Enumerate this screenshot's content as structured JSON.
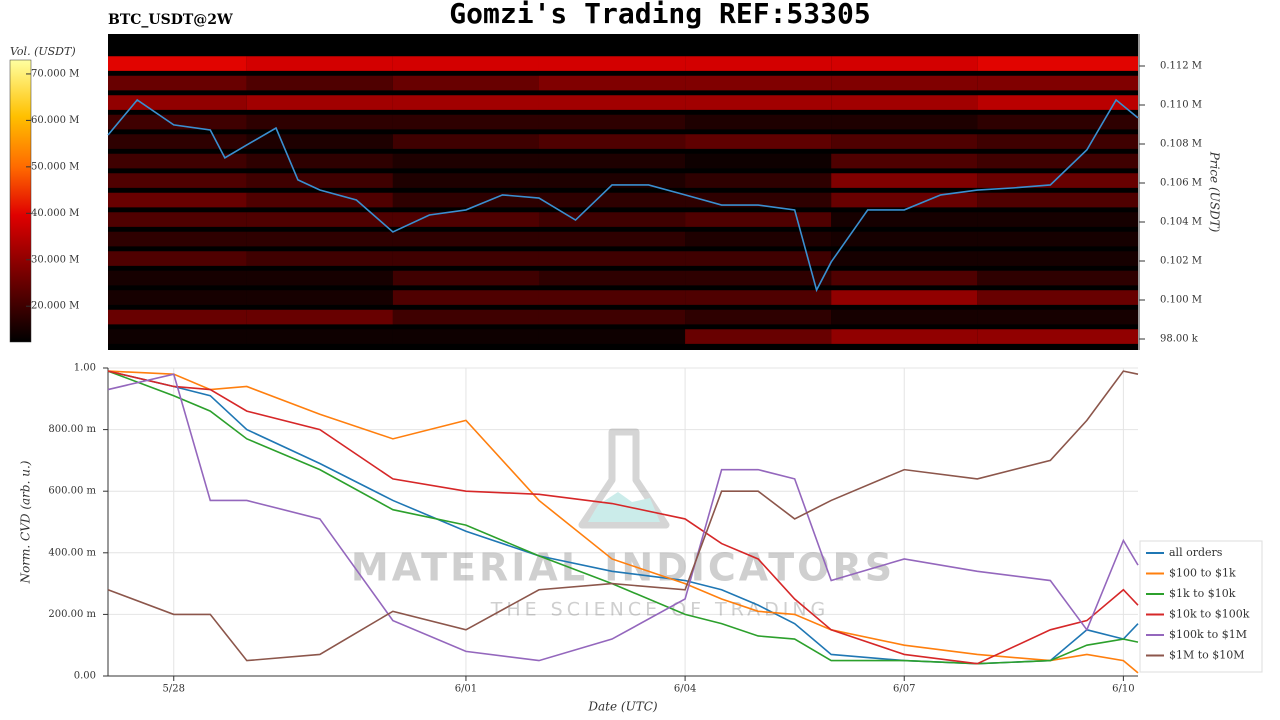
{
  "chart_data": [
    {
      "type": "heatmap",
      "title": "Gomzi's Trading REF:53305",
      "subtitle": "BTC_USDT@2W",
      "ylabel": "Price (USDT)",
      "colorbar_label": "Vol. (USDT)",
      "xlim": [
        -0.9,
        13.2
      ],
      "ylim": [
        97436,
        113641
      ],
      "yticks": [
        {
          "value": 98000,
          "label": "98.00 k"
        },
        {
          "value": 100000,
          "label": "0.100 M"
        },
        {
          "value": 102000,
          "label": "0.102 M"
        },
        {
          "value": 104000,
          "label": "0.104 M"
        },
        {
          "value": 106000,
          "label": "0.106 M"
        },
        {
          "value": 108000,
          "label": "0.108 M"
        },
        {
          "value": 110000,
          "label": "0.110 M"
        },
        {
          "value": 112000,
          "label": "0.112 M"
        }
      ],
      "clim": [
        12300000,
        73000000
      ],
      "cticks": [
        {
          "value": 20000000,
          "label": "20.000 M"
        },
        {
          "value": 30000000,
          "label": "30.000 M"
        },
        {
          "value": 40000000,
          "label": "40.000 M"
        },
        {
          "value": 50000000,
          "label": "50.000 M"
        },
        {
          "value": 60000000,
          "label": "60.000 M"
        },
        {
          "value": 70000000,
          "label": "70.000 M"
        }
      ],
      "x_edges": [
        -0.9,
        1,
        3,
        5,
        7,
        9,
        11,
        13.2
      ],
      "y_edges": [
        97500,
        98500,
        99500,
        100500,
        101500,
        102500,
        103500,
        104500,
        105500,
        106500,
        107500,
        108500,
        109500,
        110500,
        111500,
        112500
      ],
      "z": [
        [
          14000000,
          14000000,
          14000000,
          14000000,
          25000000,
          30000000,
          30000000
        ],
        [
          25000000,
          25000000,
          20000000,
          20000000,
          18000000,
          15000000,
          15000000
        ],
        [
          15000000,
          15000000,
          22000000,
          22000000,
          22000000,
          30000000,
          25000000
        ],
        [
          15000000,
          15000000,
          20000000,
          18000000,
          18000000,
          22000000,
          18000000
        ],
        [
          22000000,
          20000000,
          20000000,
          20000000,
          20000000,
          15000000,
          15000000
        ],
        [
          18000000,
          18000000,
          18000000,
          18000000,
          16000000,
          15000000,
          15000000
        ],
        [
          22000000,
          22000000,
          22000000,
          20000000,
          22000000,
          15000000,
          15000000
        ],
        [
          25000000,
          22000000,
          18000000,
          18000000,
          18000000,
          25000000,
          22000000
        ],
        [
          22000000,
          20000000,
          16000000,
          16000000,
          18000000,
          28000000,
          25000000
        ],
        [
          20000000,
          18000000,
          16000000,
          16000000,
          14000000,
          22000000,
          20000000
        ],
        [
          18000000,
          16000000,
          20000000,
          22000000,
          24000000,
          22000000,
          20000000
        ],
        [
          20000000,
          18000000,
          18000000,
          18000000,
          16000000,
          16000000,
          18000000
        ],
        [
          30000000,
          32000000,
          32000000,
          32000000,
          32000000,
          32000000,
          35000000
        ],
        [
          25000000,
          22000000,
          25000000,
          28000000,
          28000000,
          28000000,
          28000000
        ],
        [
          40000000,
          38000000,
          38000000,
          38000000,
          38000000,
          38000000,
          40000000
        ]
      ],
      "price": {
        "color": "#3a8fd0",
        "x": [
          -0.9,
          -0.5,
          0,
          0.5,
          0.7,
          1.0,
          1.4,
          1.7,
          2.0,
          2.5,
          3.0,
          3.5,
          4.0,
          4.5,
          5.0,
          5.5,
          6.0,
          6.5,
          7.0,
          7.5,
          8.0,
          8.5,
          8.8,
          9.0,
          9.5,
          10.0,
          10.5,
          11.0,
          11.5,
          12.0,
          12.5,
          12.9,
          13.2
        ],
        "values": [
          108460,
          110260,
          108980,
          108720,
          107290,
          107950,
          108820,
          106160,
          105640,
          105130,
          103490,
          104360,
          104620,
          105390,
          105230,
          104100,
          105900,
          105900,
          105390,
          104870,
          104870,
          104620,
          100510,
          101950,
          104620,
          104620,
          105390,
          105640,
          105750,
          105900,
          107700,
          110260,
          109340
        ]
      }
    },
    {
      "type": "line",
      "xlabel": "Date (UTC)",
      "ylabel": "Norm. CVD (arb. u.)",
      "watermark": "MATERIAL INDICATORS",
      "watermark_subtitle": "THE SCIENCE OF TRADING",
      "grid": true,
      "legend": "lower-right",
      "xlim": [
        -0.9,
        13.2
      ],
      "xticks": [
        {
          "value": 0,
          "label": "5/28"
        },
        {
          "value": 4,
          "label": "6/01"
        },
        {
          "value": 7,
          "label": "6/04"
        },
        {
          "value": 10,
          "label": "6/07"
        },
        {
          "value": 13,
          "label": "6/10"
        }
      ],
      "ylim": [
        0,
        1
      ],
      "yticks": [
        {
          "value": 0,
          "label": "0.00"
        },
        {
          "value": 0.2,
          "label": "200.00 m"
        },
        {
          "value": 0.4,
          "label": "400.00 m"
        },
        {
          "value": 0.6,
          "label": "600.00 m"
        },
        {
          "value": 0.8,
          "label": "800.00 m"
        },
        {
          "value": 1,
          "label": "1.00"
        }
      ],
      "x": [
        -0.9,
        0,
        0.5,
        1,
        2,
        3,
        4,
        5,
        6,
        7,
        7.5,
        8,
        8.5,
        9,
        10,
        11,
        12,
        12.5,
        13,
        13.2
      ],
      "series": [
        {
          "name": "all orders",
          "color": "#1f77b4",
          "values": [
            0.99,
            0.94,
            0.91,
            0.8,
            0.69,
            0.57,
            0.47,
            0.39,
            0.34,
            0.31,
            0.28,
            0.23,
            0.17,
            0.07,
            0.05,
            0.04,
            0.05,
            0.15,
            0.12,
            0.17
          ]
        },
        {
          "name": "$100 to $1k",
          "color": "#ff7f0e",
          "values": [
            0.99,
            0.98,
            0.93,
            0.94,
            0.85,
            0.77,
            0.83,
            0.57,
            0.38,
            0.3,
            0.25,
            0.21,
            0.2,
            0.15,
            0.1,
            0.07,
            0.05,
            0.07,
            0.05,
            0.01
          ]
        },
        {
          "name": "$1k to $10k",
          "color": "#2ca02c",
          "values": [
            0.99,
            0.91,
            0.86,
            0.77,
            0.67,
            0.54,
            0.49,
            0.39,
            0.3,
            0.2,
            0.17,
            0.13,
            0.12,
            0.05,
            0.05,
            0.04,
            0.05,
            0.1,
            0.12,
            0.11
          ]
        },
        {
          "name": "$10k to $100k",
          "color": "#d62728",
          "values": [
            0.99,
            0.94,
            0.93,
            0.86,
            0.8,
            0.64,
            0.6,
            0.59,
            0.56,
            0.51,
            0.43,
            0.38,
            0.25,
            0.15,
            0.07,
            0.04,
            0.15,
            0.18,
            0.28,
            0.23
          ]
        },
        {
          "name": "$100k to $1M",
          "color": "#9467bd",
          "values": [
            0.93,
            0.98,
            0.57,
            0.57,
            0.51,
            0.18,
            0.08,
            0.05,
            0.12,
            0.25,
            0.67,
            0.67,
            0.64,
            0.31,
            0.38,
            0.34,
            0.31,
            0.15,
            0.44,
            0.36
          ]
        },
        {
          "name": "$1M to $10M",
          "color": "#8c564b",
          "values": [
            0.28,
            0.2,
            0.2,
            0.05,
            0.07,
            0.21,
            0.15,
            0.28,
            0.3,
            0.28,
            0.6,
            0.6,
            0.51,
            0.57,
            0.67,
            0.64,
            0.7,
            0.83,
            0.99,
            0.98
          ]
        }
      ]
    }
  ]
}
